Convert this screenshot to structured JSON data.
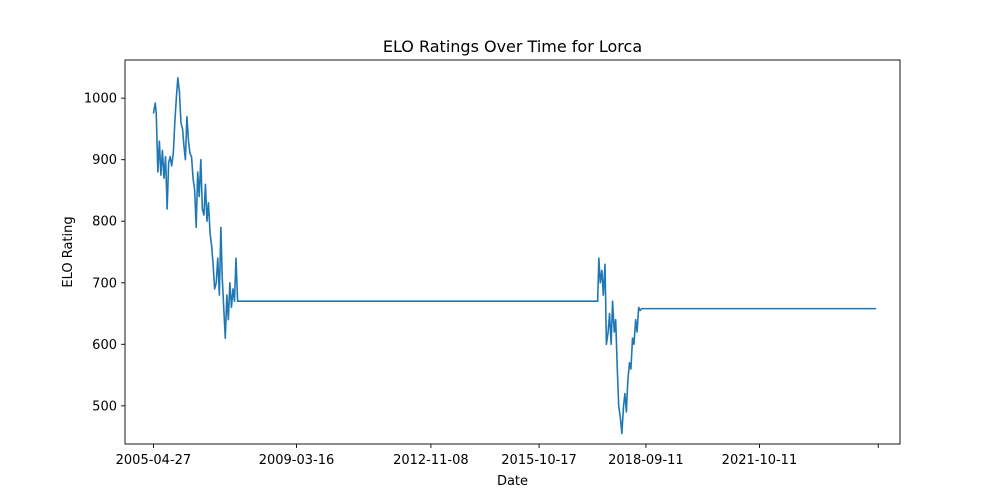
{
  "chart_data": {
    "type": "line",
    "title": "ELO Ratings Over Time for Lorca",
    "xlabel": "Date",
    "ylabel": "ELO Rating",
    "x_tick_labels": [
      "2005-04-27",
      "2009-03-16",
      "2012-11-08",
      "2015-10-17",
      "2018-09-11",
      "2021-10-11",
      ""
    ],
    "y_tick_labels": [
      "500",
      "600",
      "700",
      "800",
      "900",
      "1000"
    ],
    "y_ticks": [
      500,
      600,
      700,
      800,
      900,
      1000
    ],
    "x_tick_dates": [
      "2005-04-27",
      "2009-03-16",
      "2012-11-08",
      "2015-10-17",
      "2018-09-11",
      "2021-10-11",
      "2025-01-01"
    ],
    "xlim": [
      "2004-07-19",
      "2025-08-05"
    ],
    "ylim": [
      438,
      1062
    ],
    "grid": false,
    "line_color": "#1f77b4",
    "series": [
      {
        "x": [
          "2005-04-27",
          "2005-05-15",
          "2005-05-25",
          "2005-06-10",
          "2005-06-25",
          "2005-07-10",
          "2005-07-25",
          "2005-08-10",
          "2005-08-25",
          "2005-09-10",
          "2005-09-25",
          "2005-10-10",
          "2005-10-25",
          "2005-11-10",
          "2005-11-25",
          "2005-12-10",
          "2005-12-25",
          "2006-01-10",
          "2006-01-25",
          "2006-02-10",
          "2006-02-25",
          "2006-03-10",
          "2006-03-25",
          "2006-04-10",
          "2006-04-25",
          "2006-05-10",
          "2006-05-25",
          "2006-06-10",
          "2006-06-25",
          "2006-07-10",
          "2006-07-25",
          "2006-08-10",
          "2006-08-25",
          "2006-09-10",
          "2006-09-25",
          "2006-10-10",
          "2006-10-25",
          "2006-11-10",
          "2006-11-25",
          "2006-12-10",
          "2006-12-25",
          "2007-01-10",
          "2007-01-25",
          "2007-02-10",
          "2007-02-25",
          "2007-03-10",
          "2007-03-25",
          "2007-04-10",
          "2007-04-25",
          "2007-05-10",
          "2007-05-25",
          "2007-06-10",
          "2007-06-25",
          "2007-07-10",
          "2007-07-25",
          "2007-08-10",
          "2007-08-25",
          "2007-09-10",
          "2007-09-25",
          "2007-10-10",
          "2007-10-25",
          "2007-11-10",
          "2007-11-25",
          "2007-12-10",
          "2007-12-25",
          "2008-01-10",
          "2008-01-25",
          "2008-02-10",
          "2008-02-25",
          "2008-03-10",
          "2008-03-25",
          "2008-04-10",
          "2008-04-25",
          "2008-05-10",
          "2008-05-25",
          "2008-06-10",
          "2017-05-20",
          "2017-06-01",
          "2017-06-15",
          "2017-07-01",
          "2017-07-15",
          "2017-08-01",
          "2017-08-15",
          "2017-09-01",
          "2017-09-15",
          "2017-10-01",
          "2017-10-15",
          "2017-11-01",
          "2017-11-15",
          "2017-12-01",
          "2017-12-15",
          "2018-01-01",
          "2018-01-15",
          "2018-02-01",
          "2018-02-15",
          "2018-03-01",
          "2018-03-15",
          "2018-04-01",
          "2018-04-15",
          "2018-05-01",
          "2018-05-15",
          "2018-06-01",
          "2018-06-15",
          "2018-07-01",
          "2018-07-15",
          "2018-08-01",
          "2024-12-12"
        ],
        "y": [
          975,
          992,
          975,
          880,
          930,
          875,
          915,
          870,
          905,
          820,
          895,
          905,
          890,
          910,
          960,
          1000,
          1033,
          1010,
          960,
          950,
          920,
          900,
          970,
          930,
          910,
          905,
          870,
          850,
          790,
          880,
          840,
          900,
          820,
          810,
          860,
          800,
          830,
          780,
          760,
          730,
          690,
          700,
          740,
          680,
          790,
          710,
          660,
          610,
          680,
          640,
          700,
          660,
          690,
          670,
          740,
          670,
          670,
          670,
          670,
          670,
          670,
          670,
          670,
          670,
          670,
          670,
          670,
          670,
          670,
          670,
          670,
          670,
          670,
          670,
          670,
          670,
          670,
          740,
          700,
          720,
          680,
          730,
          600,
          620,
          650,
          600,
          670,
          620,
          640,
          560,
          500,
          480,
          455,
          500,
          520,
          490,
          540,
          570,
          560,
          610,
          600,
          640,
          620,
          660,
          655,
          658,
          658
        ]
      }
    ]
  }
}
